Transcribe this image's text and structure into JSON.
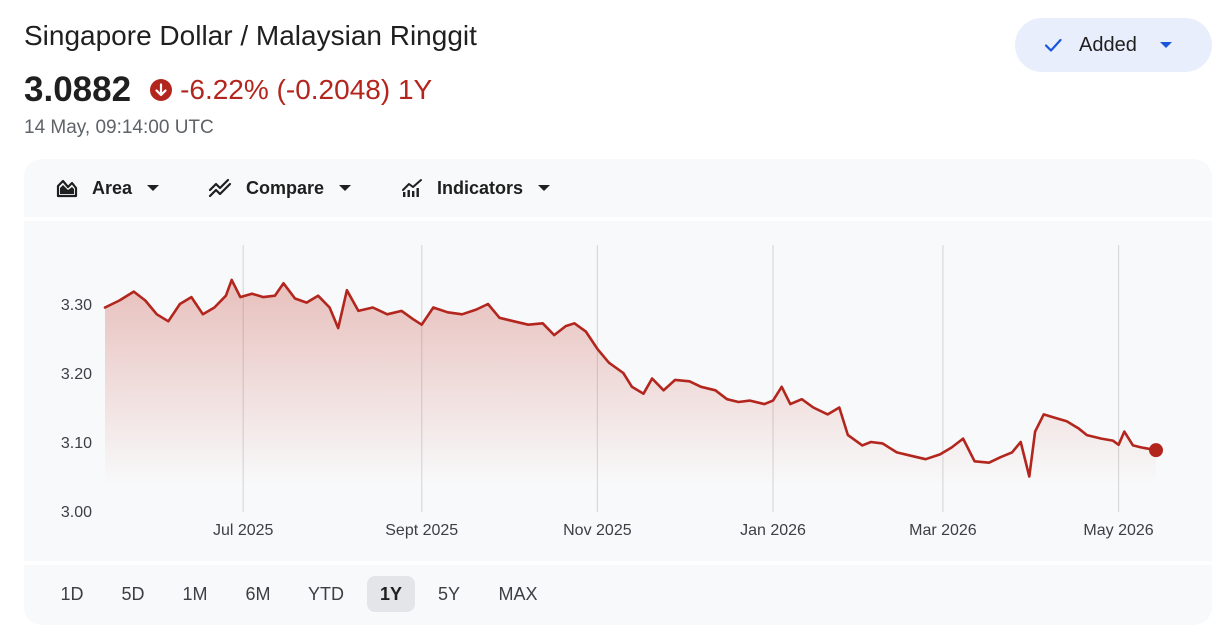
{
  "header": {
    "title": "Singapore Dollar / Malaysian Ringgit",
    "price": "3.0882",
    "change": "-6.22% (-0.2048) 1Y",
    "timestamp": "14 May, 09:14:00 UTC",
    "added_label": "Added"
  },
  "toolbar": {
    "area_label": "Area",
    "compare_label": "Compare",
    "indicators_label": "Indicators"
  },
  "ranges": [
    {
      "label": "1D",
      "selected": false
    },
    {
      "label": "5D",
      "selected": false
    },
    {
      "label": "1M",
      "selected": false
    },
    {
      "label": "6M",
      "selected": false
    },
    {
      "label": "YTD",
      "selected": false
    },
    {
      "label": "1Y",
      "selected": true
    },
    {
      "label": "5Y",
      "selected": false
    },
    {
      "label": "MAX",
      "selected": false
    }
  ],
  "colors": {
    "line": "#b3261e",
    "negative": "#b3261e",
    "button_bg": "#e8eefc",
    "check": "#1a56db"
  },
  "chart_data": {
    "type": "area",
    "xlabel": "",
    "ylabel": "",
    "ylim": [
      3.0,
      3.35
    ],
    "y_ticks": [
      3.0,
      3.1,
      3.2,
      3.3
    ],
    "y_tick_labels": [
      "3.00",
      "3.10",
      "3.20",
      "3.30"
    ],
    "x_ticks": [
      {
        "label": "Jul 2025",
        "x": "2025-07-01"
      },
      {
        "label": "Sept 2025",
        "x": "2025-09-01"
      },
      {
        "label": "Nov 2025",
        "x": "2025-11-01"
      },
      {
        "label": "Jan 2026",
        "x": "2026-01-01"
      },
      {
        "label": "Mar 2026",
        "x": "2026-03-01"
      },
      {
        "label": "May 2026",
        "x": "2026-05-01"
      }
    ],
    "grid": "vertical",
    "series": [
      {
        "points": [
          [
            "2025-05-14",
            3.295
          ],
          [
            "2025-05-19",
            3.305
          ],
          [
            "2025-05-24",
            3.318
          ],
          [
            "2025-05-28",
            3.305
          ],
          [
            "2025-06-01",
            3.285
          ],
          [
            "2025-06-05",
            3.275
          ],
          [
            "2025-06-09",
            3.3
          ],
          [
            "2025-06-13",
            3.31
          ],
          [
            "2025-06-17",
            3.285
          ],
          [
            "2025-06-21",
            3.295
          ],
          [
            "2025-06-25",
            3.312
          ],
          [
            "2025-06-27",
            3.335
          ],
          [
            "2025-06-30",
            3.31
          ],
          [
            "2025-07-04",
            3.315
          ],
          [
            "2025-07-08",
            3.31
          ],
          [
            "2025-07-12",
            3.312
          ],
          [
            "2025-07-15",
            3.33
          ],
          [
            "2025-07-19",
            3.308
          ],
          [
            "2025-07-23",
            3.302
          ],
          [
            "2025-07-27",
            3.312
          ],
          [
            "2025-07-31",
            3.295
          ],
          [
            "2025-08-03",
            3.265
          ],
          [
            "2025-08-06",
            3.32
          ],
          [
            "2025-08-10",
            3.29
          ],
          [
            "2025-08-15",
            3.295
          ],
          [
            "2025-08-20",
            3.285
          ],
          [
            "2025-08-25",
            3.29
          ],
          [
            "2025-08-29",
            3.278
          ],
          [
            "2025-09-01",
            3.27
          ],
          [
            "2025-09-05",
            3.295
          ],
          [
            "2025-09-10",
            3.288
          ],
          [
            "2025-09-15",
            3.285
          ],
          [
            "2025-09-20",
            3.292
          ],
          [
            "2025-09-24",
            3.3
          ],
          [
            "2025-09-28",
            3.28
          ],
          [
            "2025-10-03",
            3.275
          ],
          [
            "2025-10-08",
            3.27
          ],
          [
            "2025-10-13",
            3.272
          ],
          [
            "2025-10-17",
            3.255
          ],
          [
            "2025-10-21",
            3.268
          ],
          [
            "2025-10-24",
            3.272
          ],
          [
            "2025-10-28",
            3.26
          ],
          [
            "2025-11-01",
            3.235
          ],
          [
            "2025-11-05",
            3.215
          ],
          [
            "2025-11-10",
            3.2
          ],
          [
            "2025-11-13",
            3.18
          ],
          [
            "2025-11-17",
            3.17
          ],
          [
            "2025-11-20",
            3.192
          ],
          [
            "2025-11-24",
            3.175
          ],
          [
            "2025-11-28",
            3.19
          ],
          [
            "2025-12-03",
            3.188
          ],
          [
            "2025-12-07",
            3.18
          ],
          [
            "2025-12-12",
            3.175
          ],
          [
            "2025-12-16",
            3.162
          ],
          [
            "2025-12-20",
            3.158
          ],
          [
            "2025-12-24",
            3.16
          ],
          [
            "2025-12-29",
            3.155
          ],
          [
            "2026-01-01",
            3.16
          ],
          [
            "2026-01-04",
            3.18
          ],
          [
            "2026-01-07",
            3.155
          ],
          [
            "2026-01-11",
            3.162
          ],
          [
            "2026-01-15",
            3.15
          ],
          [
            "2026-01-20",
            3.14
          ],
          [
            "2026-01-24",
            3.15
          ],
          [
            "2026-01-27",
            3.11
          ],
          [
            "2026-02-01",
            3.095
          ],
          [
            "2026-02-04",
            3.1
          ],
          [
            "2026-02-08",
            3.098
          ],
          [
            "2026-02-13",
            3.085
          ],
          [
            "2026-02-18",
            3.08
          ],
          [
            "2026-02-23",
            3.075
          ],
          [
            "2026-02-28",
            3.082
          ],
          [
            "2026-03-04",
            3.092
          ],
          [
            "2026-03-08",
            3.105
          ],
          [
            "2026-03-12",
            3.072
          ],
          [
            "2026-03-17",
            3.07
          ],
          [
            "2026-03-21",
            3.078
          ],
          [
            "2026-03-25",
            3.085
          ],
          [
            "2026-03-28",
            3.1
          ],
          [
            "2026-03-31",
            3.05
          ],
          [
            "2026-04-02",
            3.115
          ],
          [
            "2026-04-05",
            3.14
          ],
          [
            "2026-04-09",
            3.135
          ],
          [
            "2026-04-13",
            3.13
          ],
          [
            "2026-04-17",
            3.12
          ],
          [
            "2026-04-20",
            3.11
          ],
          [
            "2026-04-25",
            3.105
          ],
          [
            "2026-04-29",
            3.102
          ],
          [
            "2026-05-01",
            3.096
          ],
          [
            "2026-05-03",
            3.115
          ],
          [
            "2026-05-06",
            3.095
          ],
          [
            "2026-05-09",
            3.092
          ],
          [
            "2026-05-14",
            3.0882
          ]
        ]
      }
    ]
  }
}
